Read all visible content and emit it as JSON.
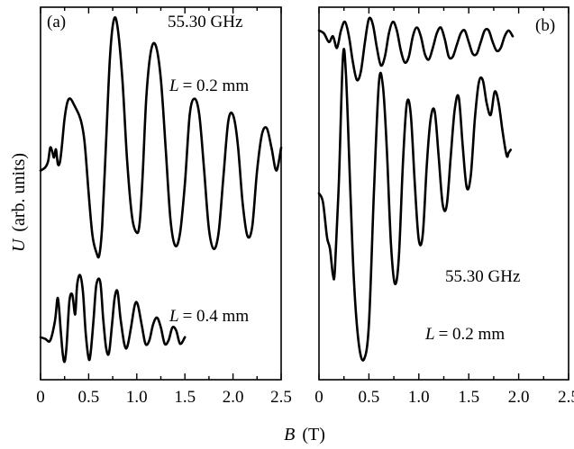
{
  "ylabel_var": "U",
  "ylabel_units": "(arb. units)",
  "xlabel_var": "B",
  "xlabel_units": "(T)",
  "chart_data": [
    {
      "type": "line",
      "panel": "(a)",
      "annotations": [
        "55.30 GHz"
      ],
      "xlim": [
        0,
        2.5
      ],
      "xticks": [
        "0",
        "0.5",
        "1.0",
        "1.5",
        "2.0",
        "2.5"
      ],
      "series": [
        {
          "label_var": "L",
          "label_value": "= 0.2 mm",
          "x": [
            0.0,
            0.05,
            0.08,
            0.1,
            0.12,
            0.14,
            0.16,
            0.18,
            0.2,
            0.22,
            0.25,
            0.28,
            0.31,
            0.35,
            0.4,
            0.43,
            0.46,
            0.5,
            0.54,
            0.58,
            0.61,
            0.64,
            0.68,
            0.72,
            0.76,
            0.8,
            0.85,
            0.9,
            0.95,
            1.0,
            1.03,
            1.06,
            1.1,
            1.15,
            1.2,
            1.25,
            1.3,
            1.35,
            1.4,
            1.45,
            1.5,
            1.55,
            1.6,
            1.65,
            1.7,
            1.75,
            1.8,
            1.85,
            1.9,
            1.95,
            2.0,
            2.05,
            2.1,
            2.15,
            2.2,
            2.25,
            2.3,
            2.35,
            2.4,
            2.45,
            2.5
          ],
          "y": [
            6.2,
            6.3,
            6.5,
            6.9,
            6.8,
            6.6,
            6.85,
            6.4,
            6.45,
            6.9,
            7.8,
            8.3,
            8.4,
            8.2,
            7.9,
            7.6,
            7.0,
            5.5,
            4.2,
            3.7,
            3.6,
            4.5,
            7.0,
            9.6,
            10.8,
            10.6,
            9.0,
            6.5,
            4.8,
            4.3,
            4.6,
            6.0,
            8.5,
            9.9,
            10.0,
            9.0,
            6.9,
            4.7,
            3.9,
            4.3,
            5.8,
            7.9,
            8.4,
            7.9,
            6.2,
            4.4,
            3.8,
            4.3,
            6.0,
            7.7,
            7.9,
            7.0,
            5.2,
            4.2,
            4.5,
            6.2,
            7.3,
            7.5,
            6.9,
            6.2,
            6.9
          ]
        },
        {
          "label_var": "L",
          "label_value": "= 0.4 mm",
          "x": [
            0.0,
            0.05,
            0.1,
            0.15,
            0.18,
            0.21,
            0.23,
            0.25,
            0.27,
            0.3,
            0.33,
            0.36,
            0.38,
            0.41,
            0.44,
            0.47,
            0.5,
            0.52,
            0.55,
            0.58,
            0.62,
            0.65,
            0.68,
            0.71,
            0.74,
            0.77,
            0.8,
            0.83,
            0.87,
            0.9,
            0.94,
            0.98,
            1.01,
            1.05,
            1.09,
            1.13,
            1.17,
            1.21,
            1.25,
            1.29,
            1.33,
            1.37,
            1.41,
            1.45,
            1.5
          ],
          "y": [
            1.1,
            1.05,
            1.0,
            1.6,
            2.3,
            1.3,
            0.6,
            0.35,
            0.8,
            2.2,
            2.4,
            1.8,
            2.7,
            3.0,
            2.5,
            1.2,
            0.45,
            0.6,
            1.6,
            2.7,
            2.8,
            1.7,
            0.8,
            0.6,
            1.4,
            2.3,
            2.5,
            1.7,
            0.9,
            0.8,
            1.4,
            2.1,
            2.1,
            1.5,
            0.9,
            1.0,
            1.5,
            1.7,
            1.4,
            0.9,
            1.0,
            1.4,
            1.3,
            0.9,
            1.1
          ]
        }
      ]
    },
    {
      "type": "line",
      "panel": "(b)",
      "annotations": [
        "55.30 GHz"
      ],
      "xlim": [
        0,
        2.5
      ],
      "xticks": [
        "0",
        "0.5",
        "1.0",
        "1.5",
        "2.0",
        "2.5"
      ],
      "series": [
        {
          "label_var": "L",
          "label_value": "= 0.2 mm",
          "x": [
            0.0,
            0.04,
            0.08,
            0.11,
            0.14,
            0.16,
            0.2,
            0.24,
            0.27,
            0.31,
            0.35,
            0.4,
            0.45,
            0.5,
            0.55,
            0.6,
            0.64,
            0.68,
            0.72,
            0.76,
            0.8,
            0.84,
            0.88,
            0.92,
            0.96,
            1.0,
            1.04,
            1.08,
            1.12,
            1.16,
            1.2,
            1.24,
            1.28,
            1.32,
            1.36,
            1.4,
            1.44,
            1.48,
            1.52,
            1.56,
            1.6,
            1.64,
            1.68,
            1.72,
            1.76,
            1.8,
            1.84,
            1.88,
            1.9,
            1.92
          ],
          "y": [
            6.0,
            5.7,
            4.5,
            4.1,
            3.2,
            3.4,
            6.5,
            10.7,
            10.1,
            6.5,
            3.0,
            0.8,
            0.3,
            1.5,
            6.0,
            9.8,
            9.7,
            7.5,
            4.3,
            2.9,
            3.8,
            7.0,
            9.1,
            8.7,
            6.3,
            4.4,
            4.6,
            7.0,
            8.6,
            8.8,
            7.2,
            5.6,
            5.6,
            7.3,
            8.9,
            9.3,
            7.6,
            6.2,
            6.6,
            8.5,
            9.8,
            9.9,
            9.1,
            8.7,
            9.5,
            9.1,
            8.1,
            7.3,
            7.4,
            7.5
          ]
        },
        {
          "label_var": "",
          "label_value": "",
          "x": [
            0.0,
            0.05,
            0.1,
            0.14,
            0.18,
            0.22,
            0.26,
            0.3,
            0.34,
            0.38,
            0.42,
            0.46,
            0.5,
            0.54,
            0.58,
            0.62,
            0.66,
            0.7,
            0.74,
            0.78,
            0.82,
            0.86,
            0.9,
            0.94,
            0.98,
            1.02,
            1.06,
            1.1,
            1.14,
            1.18,
            1.22,
            1.26,
            1.3,
            1.34,
            1.38,
            1.42,
            1.46,
            1.5,
            1.54,
            1.58,
            1.62,
            1.66,
            1.7,
            1.74,
            1.78,
            1.82,
            1.86,
            1.9,
            1.94
          ],
          "y": [
            11.6,
            11.5,
            11.2,
            11.4,
            11.0,
            11.6,
            11.9,
            11.4,
            10.5,
            9.9,
            10.2,
            11.2,
            12.0,
            11.8,
            11.0,
            10.4,
            10.7,
            11.5,
            11.9,
            11.6,
            10.9,
            10.5,
            10.7,
            11.4,
            11.7,
            11.4,
            10.8,
            10.6,
            11.0,
            11.5,
            11.7,
            11.3,
            10.7,
            10.7,
            11.1,
            11.5,
            11.6,
            11.2,
            10.8,
            10.8,
            11.2,
            11.6,
            11.6,
            11.2,
            10.9,
            11.0,
            11.4,
            11.6,
            11.4
          ]
        }
      ]
    }
  ]
}
